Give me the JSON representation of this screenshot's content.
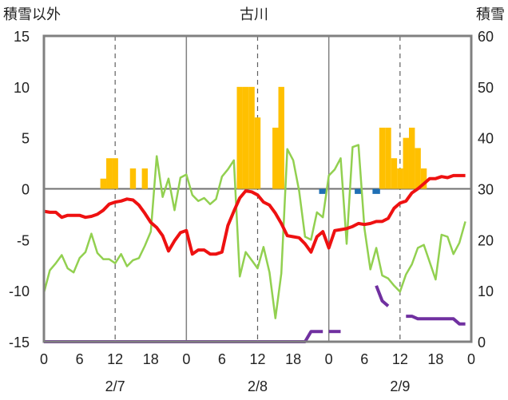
{
  "chart_data": {
    "type": "line",
    "title": "古川",
    "ylabel_left": "積雪以外",
    "ylabel_right": "積雪",
    "ylim_left": [
      -15,
      15
    ],
    "yticks_left": [
      -15,
      -10,
      -5,
      0,
      5,
      10,
      15
    ],
    "ylim_right": [
      0,
      60
    ],
    "yticks_right": [
      0,
      10,
      20,
      30,
      40,
      50,
      60
    ],
    "xlim": [
      0,
      72
    ],
    "xticks": [
      0,
      6,
      12,
      18,
      24,
      30,
      36,
      42,
      48,
      54,
      60,
      66,
      72
    ],
    "xtick_labels": [
      "0",
      "6",
      "12",
      "18",
      "0",
      "6",
      "12",
      "18",
      "0",
      "6",
      "12",
      "18",
      "0"
    ],
    "day_labels": [
      "2/7",
      "2/8",
      "2/9"
    ],
    "day_centers": [
      12,
      36,
      60
    ],
    "grid": "dashed vertical lines at 12h, solid at day boundaries",
    "colors": {
      "bars": "#FFC000",
      "small_bars": "#1F6FB4",
      "red_line": "#EE1111",
      "green_line": "#92D050",
      "purple_line": "#7030A0",
      "axis": "#808080",
      "grid": "#606060"
    },
    "bars": {
      "axis": "left",
      "x": [
        10,
        11,
        12,
        15,
        17,
        33,
        34,
        35,
        36,
        39,
        40,
        57,
        58,
        59,
        60,
        61,
        62,
        63,
        64
      ],
      "values": [
        1,
        3,
        3,
        2,
        2,
        10,
        10,
        10,
        7,
        6,
        10,
        6,
        6,
        3,
        2,
        5,
        6,
        4,
        2
      ]
    },
    "small_bars": {
      "axis": "left",
      "x": [
        47,
        53,
        56
      ],
      "values": [
        -0.5,
        -0.5,
        -0.5
      ]
    },
    "series": [
      {
        "color": "red",
        "axis": "left",
        "x": [
          0,
          1,
          2,
          3,
          4,
          5,
          6,
          7,
          8,
          9,
          10,
          11,
          12,
          13,
          14,
          15,
          16,
          17,
          18,
          19,
          20,
          21,
          22,
          23,
          24,
          25,
          26,
          27,
          28,
          29,
          30,
          31,
          32,
          33,
          34,
          35,
          36,
          37,
          38,
          39,
          40,
          41,
          42,
          43,
          44,
          45,
          46,
          47,
          48,
          49,
          50,
          51,
          52,
          53,
          54,
          55,
          56,
          57,
          58,
          59,
          60,
          61,
          62,
          63,
          64,
          65,
          66,
          67,
          68,
          69,
          70,
          71
        ],
        "y": [
          -2.2,
          -2.3,
          -2.3,
          -2.8,
          -2.6,
          -2.6,
          -2.6,
          -2.8,
          -2.7,
          -2.5,
          -2.1,
          -1.5,
          -1.3,
          -1.2,
          -1.0,
          -1.1,
          -1.6,
          -2.4,
          -3.3,
          -3.8,
          -4.6,
          -6.1,
          -5.1,
          -4.3,
          -4.1,
          -6.4,
          -6.0,
          -6.0,
          -6.4,
          -6.4,
          -6.2,
          -3.6,
          -2.2,
          -0.9,
          -0.2,
          -0.3,
          -0.6,
          -1.3,
          -1.6,
          -2.4,
          -3.4,
          -4.6,
          -4.7,
          -4.8,
          -5.4,
          -6.2,
          -4.7,
          -4.2,
          -5.8,
          -4.1,
          -4.0,
          -3.9,
          -3.7,
          -3.4,
          -3.5,
          -3.4,
          -3.2,
          -3.2,
          -2.9,
          -1.9,
          -1.4,
          -1.2,
          -0.4,
          0.0,
          0.5,
          1.0,
          1.0,
          1.2,
          1.1,
          1.3,
          1.3,
          1.3
        ]
      },
      {
        "color": "green",
        "axis": "left",
        "x": [
          0,
          1,
          2,
          3,
          4,
          5,
          6,
          7,
          8,
          9,
          10,
          11,
          12,
          13,
          14,
          15,
          16,
          17,
          18,
          19,
          20,
          21,
          22,
          23,
          24,
          25,
          26,
          27,
          28,
          29,
          30,
          31,
          32,
          33,
          34,
          35,
          36,
          37,
          38,
          39,
          40,
          41,
          42,
          43,
          44,
          45,
          46,
          47,
          48,
          49,
          50,
          51,
          52,
          53,
          54,
          55,
          56,
          57,
          58,
          59,
          60,
          61,
          62,
          63,
          64,
          65,
          66,
          67,
          68,
          69,
          70,
          71
        ],
        "y": [
          -10.2,
          -8.0,
          -7.3,
          -6.5,
          -7.8,
          -8.2,
          -6.8,
          -6.2,
          -4.4,
          -6.3,
          -6.9,
          -6.9,
          -7.3,
          -6.4,
          -7.6,
          -7.0,
          -6.8,
          -5.6,
          -4.2,
          3.2,
          -0.8,
          1.0,
          -2.1,
          1.1,
          1.4,
          -0.6,
          -1.2,
          -0.9,
          -1.5,
          -1.0,
          1.2,
          1.9,
          2.8,
          -8.6,
          -6.2,
          -7.0,
          -7.8,
          -5.7,
          -8.2,
          -12.7,
          -8.3,
          3.9,
          2.8,
          -0.2,
          -4.7,
          -5.0,
          -2.3,
          -2.8,
          1.3,
          1.9,
          3.0,
          -5.4,
          4.1,
          4.3,
          -3.9,
          -7.9,
          -5.8,
          -8.5,
          -8.8,
          -9.5,
          -10.1,
          -8.4,
          -7.4,
          -5.8,
          -5.5,
          -7.2,
          -8.9,
          -4.5,
          -4.7,
          -6.4,
          -5.3,
          -3.2
        ]
      },
      {
        "color": "purple",
        "axis": "right",
        "segments": [
          {
            "x": [
              0,
              44,
              45,
              46,
              47
            ],
            "y": [
              0,
              0,
              2,
              2,
              2
            ]
          },
          {
            "x": [
              48,
              49,
              50
            ],
            "y": [
              2,
              2,
              2
            ]
          },
          {
            "x": [
              56,
              57,
              58
            ],
            "y": [
              11,
              8,
              7
            ]
          },
          {
            "x": [
              61,
              62,
              63,
              64,
              65,
              66,
              67,
              68,
              69,
              70,
              71
            ],
            "y": [
              5,
              5,
              4.5,
              4.5,
              4.5,
              4.5,
              4.5,
              4.5,
              4.5,
              3.5,
              3.5
            ]
          }
        ]
      }
    ]
  }
}
